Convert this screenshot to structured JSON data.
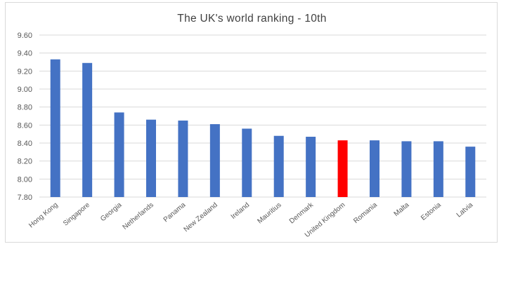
{
  "chart_data": {
    "type": "bar",
    "title": "The UK's world ranking - 10th",
    "categories": [
      "Hong Kong",
      "Singapore",
      "Georgia",
      "Netherlands",
      "Panama",
      "New Zealand",
      "Ireland",
      "Mauritius",
      "Denmark",
      "United Kingdom",
      "Romania",
      "Malta",
      "Estonia",
      "Latvia"
    ],
    "values": [
      9.33,
      9.29,
      8.74,
      8.66,
      8.65,
      8.61,
      8.56,
      8.48,
      8.47,
      8.43,
      8.43,
      8.42,
      8.42,
      8.36
    ],
    "ylim": [
      7.8,
      9.6
    ],
    "yticks": [
      "7.80",
      "8.00",
      "8.20",
      "8.40",
      "8.60",
      "8.80",
      "9.00",
      "9.20",
      "9.40",
      "9.60"
    ],
    "grid": true,
    "bar_color": "#4472c4",
    "highlight_color": "#ff0000",
    "highlight_category": "United Kingdom",
    "xlabel": "",
    "ylabel": ""
  }
}
